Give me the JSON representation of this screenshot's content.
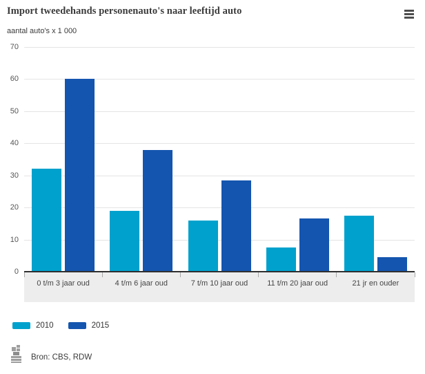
{
  "chart_data": {
    "type": "bar",
    "title": "Import tweedehands personenauto's naar leeftijd auto",
    "unit_label": "aantal auto's x 1 000",
    "categories": [
      "0 t/m 3 jaar oud",
      "4 t/m 6 jaar oud",
      "7 t/m 10 jaar oud",
      "11 t/m 20 jaar oud",
      "21 jr en ouder"
    ],
    "series": [
      {
        "name": "2010",
        "color": "#00a1cd",
        "values": [
          32,
          19,
          16,
          7.5,
          17.5
        ]
      },
      {
        "name": "2015",
        "color": "#1455af",
        "values": [
          60,
          38,
          28.5,
          16.5,
          4.5
        ]
      }
    ],
    "ylim": [
      0,
      70
    ],
    "ytick_step": 10,
    "grid": true,
    "legend_position": "bottom",
    "xlabel": "",
    "ylabel": "aantal auto's x 1 000"
  },
  "icons": {
    "menu": "hamburger-icon",
    "source_logo": "cbs-logo-icon"
  },
  "colors": {
    "series_2010": "#00a1cd",
    "series_2015": "#1455af",
    "gridline": "#e4e4e4",
    "axis_band": "#ededed",
    "axis_line": "#2f2f2f",
    "logo_gray": "#9e9e9e"
  },
  "source": {
    "label": "Bron: CBS, RDW"
  }
}
